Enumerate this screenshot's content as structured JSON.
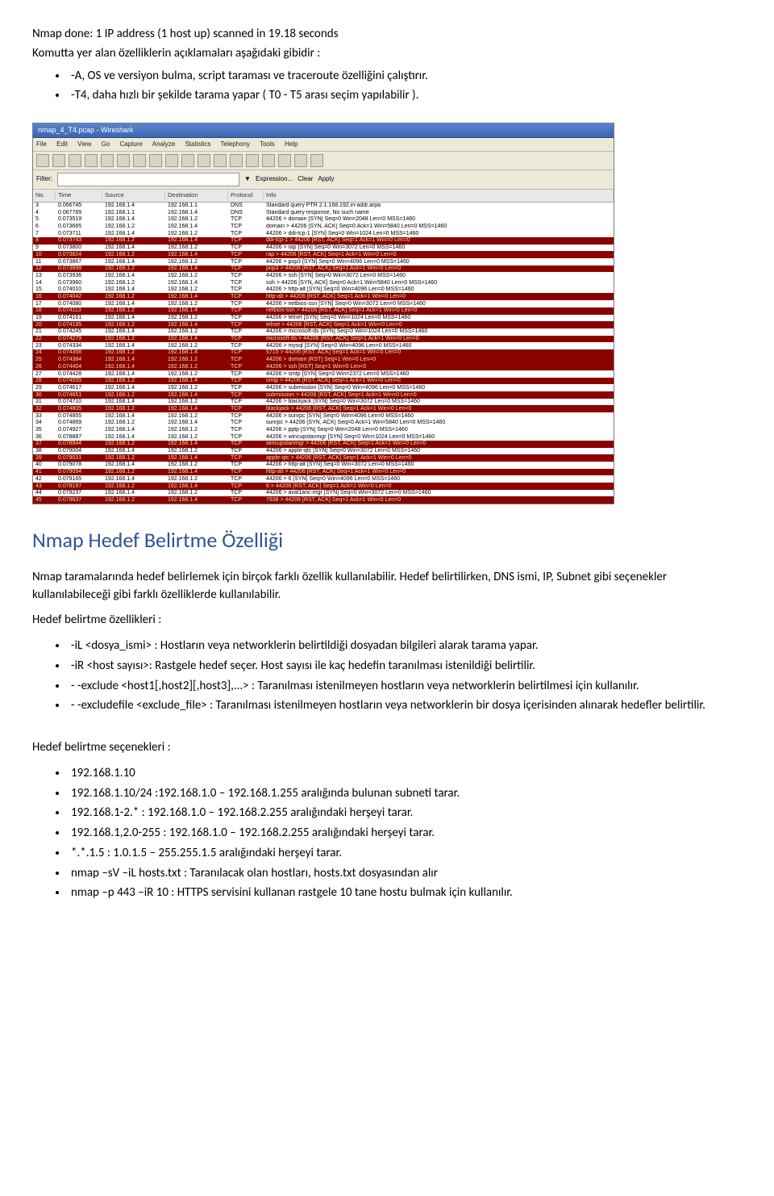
{
  "intro_lines": [
    "Nmap done: 1 IP address (1 host up) scanned in 19.18 seconds",
    "Komutta yer alan özelliklerin açıklamaları aşağıdaki gibidir :"
  ],
  "intro_bullets": [
    "-A, OS ve versiyon bulma, script taraması ve traceroute özelliğini çalıştırır.",
    "-T4, daha hızlı bir şekilde tarama yapar ( T0 - T5 arası seçim yapılabilir )."
  ],
  "wireshark": {
    "title": "nmap_4_T4.pcap - Wireshark",
    "menu": [
      "File",
      "Edit",
      "View",
      "Go",
      "Capture",
      "Analyze",
      "Statistics",
      "Telephony",
      "Tools",
      "Help"
    ],
    "filter_label": "Filter:",
    "filter_buttons": [
      "Expression...",
      "Clear",
      "Apply"
    ],
    "columns": [
      "No.",
      "Time",
      "Source",
      "Destination",
      "Protocol",
      "Info"
    ],
    "rows": [
      {
        "c": "white",
        "no": "3",
        "time": "0.066745",
        "src": "192.168.1.4",
        "dst": "192.168.1.1",
        "proto": "DNS",
        "info": "Standard query PTR 2.1.168.192.in-addr.arpa"
      },
      {
        "c": "white",
        "no": "4",
        "time": "0.067789",
        "src": "192.168.1.1",
        "dst": "192.168.1.4",
        "proto": "DNS",
        "info": "Standard query response, No such name"
      },
      {
        "c": "white",
        "no": "5",
        "time": "0.073519",
        "src": "192.168.1.4",
        "dst": "192.168.1.2",
        "proto": "TCP",
        "info": "44206 > domain [SYN] Seq=0 Win=2048 Len=0 MSS=1460"
      },
      {
        "c": "white",
        "no": "6",
        "time": "0.073665",
        "src": "192.168.1.2",
        "dst": "192.168.1.4",
        "proto": "TCP",
        "info": "domain > 44206 [SYN, ACK] Seq=0 Ack=1 Win=5840 Len=0 MSS=1460"
      },
      {
        "c": "white",
        "no": "7",
        "time": "0.073711",
        "src": "192.168.1.4",
        "dst": "192.168.1.2",
        "proto": "TCP",
        "info": "44206 > ddi-tcp-1 [SYN] Seq=0 Win=1024 Len=0 MSS=1460"
      },
      {
        "c": "dark",
        "no": "8",
        "time": "0.073743",
        "src": "192.168.1.2",
        "dst": "192.168.1.4",
        "proto": "TCP",
        "info": "ddi-tcp-1 > 44206 [RST, ACK] Seq=1 Ack=1 Win=0 Len=0"
      },
      {
        "c": "white",
        "no": "9",
        "time": "0.073800",
        "src": "192.168.1.4",
        "dst": "192.168.1.2",
        "proto": "TCP",
        "info": "44206 > rap [SYN] Seq=0 Win=3072 Len=0 MSS=1460"
      },
      {
        "c": "dark",
        "no": "10",
        "time": "0.073824",
        "src": "192.168.1.2",
        "dst": "192.168.1.4",
        "proto": "TCP",
        "info": "rap > 44206 [RST, ACK] Seq=1 Ack=1 Win=0 Len=0"
      },
      {
        "c": "white",
        "no": "11",
        "time": "0.073867",
        "src": "192.168.1.4",
        "dst": "192.168.1.2",
        "proto": "TCP",
        "info": "44206 > pop3 [SYN] Seq=0 Win=4096 Len=0 MSS=1460"
      },
      {
        "c": "dark",
        "no": "12",
        "time": "0.073899",
        "src": "192.168.1.2",
        "dst": "192.168.1.4",
        "proto": "TCP",
        "info": "pop3 > 44206 [RST, ACK] Seq=1 Ack=1 Win=0 Len=0"
      },
      {
        "c": "white",
        "no": "13",
        "time": "0.073936",
        "src": "192.168.1.4",
        "dst": "192.168.1.2",
        "proto": "TCP",
        "info": "44206 > ssh [SYN] Seq=0 Win=3072 Len=0 MSS=1460"
      },
      {
        "c": "white",
        "no": "14",
        "time": "0.073960",
        "src": "192.168.1.2",
        "dst": "192.168.1.4",
        "proto": "TCP",
        "info": "ssh > 44206 [SYN, ACK] Seq=0 Ack=1 Win=5840 Len=0 MSS=1460"
      },
      {
        "c": "white",
        "no": "15",
        "time": "0.074010",
        "src": "192.168.1.4",
        "dst": "192.168.1.2",
        "proto": "TCP",
        "info": "44206 > http-alt [SYN] Seq=0 Win=4096 Len=0 MSS=1460"
      },
      {
        "c": "dark",
        "no": "16",
        "time": "0.074042",
        "src": "192.168.1.2",
        "dst": "192.168.1.4",
        "proto": "TCP",
        "info": "http-alt > 44206 [RST, ACK] Seq=1 Ack=1 Win=0 Len=0"
      },
      {
        "c": "white",
        "no": "17",
        "time": "0.074080",
        "src": "192.168.1.4",
        "dst": "192.168.1.2",
        "proto": "TCP",
        "info": "44206 > netbios-ssn [SYN] Seq=0 Win=3072 Len=0 MSS=1460"
      },
      {
        "c": "dark",
        "no": "18",
        "time": "0.074113",
        "src": "192.168.1.2",
        "dst": "192.168.1.4",
        "proto": "TCP",
        "info": "netbios-ssn > 44206 [RST, ACK] Seq=1 Ack=1 Win=0 Len=0"
      },
      {
        "c": "white",
        "no": "19",
        "time": "0.074161",
        "src": "192.168.1.4",
        "dst": "192.168.1.2",
        "proto": "TCP",
        "info": "44206 > telnet [SYN] Seq=0 Win=1024 Len=0 MSS=1460"
      },
      {
        "c": "dark",
        "no": "20",
        "time": "0.074185",
        "src": "192.168.1.2",
        "dst": "192.168.1.4",
        "proto": "TCP",
        "info": "telnet > 44206 [RST, ACK] Seq=1 Ack=1 Win=0 Len=0"
      },
      {
        "c": "white",
        "no": "21",
        "time": "0.074245",
        "src": "192.168.1.4",
        "dst": "192.168.1.2",
        "proto": "TCP",
        "info": "44206 > microsoft-ds [SYN] Seq=0 Win=1024 Len=0 MSS=1460"
      },
      {
        "c": "dark",
        "no": "22",
        "time": "0.074279",
        "src": "192.168.1.2",
        "dst": "192.168.1.4",
        "proto": "TCP",
        "info": "microsoft-ds > 44206 [RST, ACK] Seq=1 Ack=1 Win=0 Len=0"
      },
      {
        "c": "white",
        "no": "23",
        "time": "0.074334",
        "src": "192.168.1.4",
        "dst": "192.168.1.2",
        "proto": "TCP",
        "info": "44206 > mysql [SYN] Seq=0 Win=4096 Len=0 MSS=1460"
      },
      {
        "c": "dark",
        "no": "24",
        "time": "0.074358",
        "src": "192.168.1.2",
        "dst": "192.168.1.4",
        "proto": "TCP",
        "info": "5715 > 44206 [RST, ACK] Seq=1 Ack=1 Win=0 Len=0"
      },
      {
        "c": "dark",
        "no": "25",
        "time": "0.074384",
        "src": "192.168.1.4",
        "dst": "192.168.1.2",
        "proto": "TCP",
        "info": "44206 > domain [RST] Seq=1 Win=0 Len=0"
      },
      {
        "c": "dark",
        "no": "26",
        "time": "0.074404",
        "src": "192.168.1.4",
        "dst": "192.168.1.2",
        "proto": "TCP",
        "info": "44206 > ssh [RST] Seq=1 Win=0 Len=0"
      },
      {
        "c": "white",
        "no": "27",
        "time": "0.074428",
        "src": "192.168.1.4",
        "dst": "192.168.1.2",
        "proto": "TCP",
        "info": "44206 > smtp  [SYN] Seq=0 Win=2372 Len=0 MSS=1460"
      },
      {
        "c": "dark",
        "no": "28",
        "time": "0.074555",
        "src": "192.168.1.2",
        "dst": "192.168.1.4",
        "proto": "TCP",
        "info": "smtp > 44206 [RST, ACK] Seq=1 Ack=1 Win=0 Len=0"
      },
      {
        "c": "white",
        "no": "29",
        "time": "0.074617",
        "src": "192.168.1.4",
        "dst": "192.168.1.2",
        "proto": "TCP",
        "info": "44206 > submission [SYN] Seq=0 Win=4096 Len=0 MSS=1460"
      },
      {
        "c": "dark",
        "no": "30",
        "time": "0.074651",
        "src": "192.168.1.2",
        "dst": "192.168.1.4",
        "proto": "TCP",
        "info": "submission > 44206 [RST, ACK] Seq=1 Ack=1 Win=0 Len=0"
      },
      {
        "c": "white",
        "no": "31",
        "time": "0.074710",
        "src": "192.168.1.4",
        "dst": "192.168.1.2",
        "proto": "TCP",
        "info": "44206 > blackjack [SYN] Seq=0 Win=3072 Len=0 MSS=1460"
      },
      {
        "c": "dark",
        "no": "32",
        "time": "0.074805",
        "src": "192.168.1.2",
        "dst": "192.168.1.4",
        "proto": "TCP",
        "info": "blackjack > 44206 [RST, ACK] Seq=1 Ack=1 Win=0 Len=0"
      },
      {
        "c": "white",
        "no": "33",
        "time": "0.074855",
        "src": "192.168.1.4",
        "dst": "192.168.1.2",
        "proto": "TCP",
        "info": "44206 > sunrpc [SYN] Seq=0 Win=4096 Len=0 MSS=1460"
      },
      {
        "c": "white",
        "no": "34",
        "time": "0.074869",
        "src": "192.168.1.2",
        "dst": "192.168.1.4",
        "proto": "TCP",
        "info": "sunrpc > 44206 [SYN, ACK] Seq=0 Ack=1 Win=5840 Len=0 MSS=1460"
      },
      {
        "c": "white",
        "no": "35",
        "time": "0.074927",
        "src": "192.168.1.4",
        "dst": "192.168.1.2",
        "proto": "TCP",
        "info": "44206 > pptp [SYN] Seq=0 Win=2048 Len=0 MSS=1460"
      },
      {
        "c": "white",
        "no": "36",
        "time": "0.078887",
        "src": "192.168.1.4",
        "dst": "192.168.1.2",
        "proto": "TCP",
        "info": "44206 > wincupstanmgr [SYN] Seq=0 Win=1024 Len=0 MSS=1460"
      },
      {
        "c": "dark",
        "no": "37",
        "time": "0.078944",
        "src": "192.168.1.2",
        "dst": "192.168.1.4",
        "proto": "TCP",
        "info": "wincupstanmgr > 44206 [RST, ACK] Seq=1 Ack=1 Win=0 Len=0"
      },
      {
        "c": "white",
        "no": "38",
        "time": "0.079004",
        "src": "192.168.1.4",
        "dst": "192.168.1.2",
        "proto": "TCP",
        "info": "44206 > apple-qtc [SYN] Seq=0 Win=3072 Len=0 MSS=1460"
      },
      {
        "c": "dark",
        "no": "39",
        "time": "0.079031",
        "src": "192.168.1.2",
        "dst": "192.168.1.4",
        "proto": "TCP",
        "info": "apple-qtc > 44206 [RST, ACK] Seq=1 Ack=1 Win=0 Len=0"
      },
      {
        "c": "white",
        "no": "40",
        "time": "0.079078",
        "src": "192.168.1.4",
        "dst": "192.168.1.2",
        "proto": "TCP",
        "info": "44206 > http-alt [SYN] Seq=0 Win=3072 Len=0 MSS=1460"
      },
      {
        "c": "dark",
        "no": "41",
        "time": "0.079094",
        "src": "192.168.1.2",
        "dst": "192.168.1.4",
        "proto": "TCP",
        "info": "http-alt > 44206 [RST, ACK] Seq=1 Ack=1 Win=0 Len=0"
      },
      {
        "c": "white",
        "no": "42",
        "time": "0.079165",
        "src": "192.168.1.4",
        "dst": "192.168.1.2",
        "proto": "TCP",
        "info": "44206 > 6 [SYN] Seq=0 Win=4096 Len=0 MSS=1460"
      },
      {
        "c": "dark",
        "no": "43",
        "time": "0.079197",
        "src": "192.168.1.2",
        "dst": "192.168.1.4",
        "proto": "TCP",
        "info": "6 > 44206 [RST, ACK] Seq=1 Ack=1 Win=0 Len=0"
      },
      {
        "c": "white",
        "no": "44",
        "time": "0.079237",
        "src": "192.168.1.4",
        "dst": "192.168.1.2",
        "proto": "TCP",
        "info": "44206 > aval1anc-mgr [SYN] Seq=0 Win=3072 Len=0 MSS=1460"
      },
      {
        "c": "dark",
        "no": "45",
        "time": "0.079637",
        "src": "192.168.1.2",
        "dst": "192.168.1.4",
        "proto": "TCP",
        "info": "7938 > 44206 [RST, ACK] Seq=1 Ack=1 Win=0 Len=0"
      }
    ]
  },
  "section_heading": "Nmap Hedef Belirtme Özelliği",
  "para1": "Nmap taramalarında hedef belirlemek için birçok farklı özellik kullanılabilir. Hedef belirtilirken, DNS ismi, IP, Subnet gibi seçenekler kullanılabileceği gibi farklı özelliklerde kullanılabilir.",
  "para2": "Hedef belirtme özellikleri :",
  "feature_bullets": [
    "-iL <dosya_ismi> : Hostların veya networklerin belirtildiği dosyadan bilgileri alarak tarama yapar.",
    "-iR <host sayısı>: Rastgele hedef seçer. Host sayısı ile kaç hedefin taranılması istenildiği belirtilir.",
    "- -exclude <host1[,host2][,host3],...> : Taranılması istenilmeyen hostların veya networklerin belirtilmesi için kullanılır.",
    "- -excludefile <exclude_file> : Taranılması istenilmeyen hostların veya networklerin bir dosya içerisinden alınarak hedefler belirtilir."
  ],
  "para3": "Hedef belirtme seçenekleri :",
  "choice_bullets": [
    "192.168.1.10",
    "192.168.1.10/24 :192.168.1.0 – 192.168.1.255 aralığında bulunan subneti tarar.",
    "192.168.1-2.* : 192.168.1.0 – 192.168.2.255 aralığındaki herşeyi tarar.",
    "192.168.1,2.0-255 : 192.168.1.0 – 192.168.2.255 aralığındaki herşeyi tarar.",
    "*.*.1.5  :  1.0.1.5 – 255.255.1.5 aralığındaki herşeyi tarar.",
    "nmap –sV –iL hosts.txt : Taranılacak olan hostları, hosts.txt dosyasından alır",
    "nmap –p 443 –iR 10 :  HTTPS servisini kullanan rastgele 10 tane hostu bulmak için kullanılır."
  ]
}
